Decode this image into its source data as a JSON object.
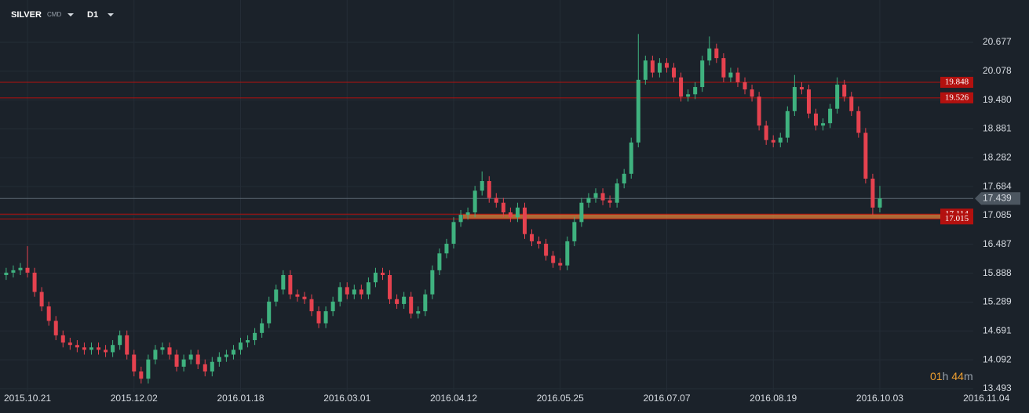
{
  "chart_data": {
    "type": "candlestick",
    "symbol": "SILVER",
    "market": "CMD",
    "timeframe": "D1",
    "open": [
      15.85,
      15.9,
      15.95,
      16.0,
      15.9,
      15.5,
      15.2,
      14.9,
      14.6,
      14.45,
      14.4,
      14.35,
      14.3,
      14.35,
      14.3,
      14.25,
      14.4,
      14.6,
      14.2,
      13.85,
      13.7,
      14.1,
      14.3,
      14.35,
      14.2,
      13.95,
      14.1,
      14.2,
      14.0,
      13.85,
      14.05,
      14.15,
      14.2,
      14.3,
      14.45,
      14.5,
      14.65,
      14.85,
      15.3,
      15.55,
      15.85,
      15.45,
      15.4,
      15.35,
      15.1,
      14.85,
      15.1,
      15.3,
      15.6,
      15.45,
      15.55,
      15.45,
      15.7,
      15.9,
      15.85,
      15.35,
      15.25,
      15.4,
      15.05,
      15.1,
      15.45,
      15.95,
      16.3,
      16.5,
      16.95,
      17.1,
      17.15,
      17.6,
      17.8,
      17.45,
      17.35,
      17.15,
      17.05,
      17.25,
      16.7,
      16.55,
      16.5,
      16.25,
      16.1,
      16.05,
      16.55,
      16.95,
      17.35,
      17.45,
      17.55,
      17.4,
      17.35,
      17.75,
      17.95,
      18.6,
      19.9,
      20.3,
      20.05,
      20.25,
      20.15,
      19.95,
      19.55,
      19.6,
      19.75,
      20.3,
      20.55,
      20.35,
      19.95,
      20.05,
      19.85,
      19.7,
      19.55,
      18.95,
      18.65,
      18.6,
      18.7,
      19.25,
      19.75,
      19.7,
      19.2,
      18.95,
      19.0,
      19.3,
      19.8,
      19.55,
      19.25,
      18.8,
      17.85,
      17.25
    ],
    "high": [
      16.0,
      16.05,
      16.1,
      16.45,
      16.0,
      15.6,
      15.3,
      15.0,
      14.7,
      14.55,
      14.5,
      14.45,
      14.45,
      14.45,
      14.4,
      14.5,
      14.7,
      14.7,
      14.3,
      13.95,
      14.2,
      14.4,
      14.45,
      14.45,
      14.3,
      14.2,
      14.3,
      14.3,
      14.1,
      14.15,
      14.25,
      14.3,
      14.4,
      14.55,
      14.6,
      14.75,
      14.95,
      15.4,
      15.65,
      15.95,
      15.95,
      15.55,
      15.5,
      15.45,
      15.2,
      15.2,
      15.4,
      15.7,
      15.7,
      15.65,
      15.65,
      15.8,
      16.0,
      16.0,
      15.95,
      15.45,
      15.5,
      15.5,
      15.2,
      15.55,
      16.05,
      16.4,
      16.6,
      17.05,
      17.2,
      17.25,
      17.7,
      18.0,
      17.9,
      17.55,
      17.45,
      17.25,
      17.35,
      17.35,
      16.8,
      16.65,
      16.6,
      16.35,
      16.2,
      16.65,
      17.05,
      17.45,
      17.55,
      17.65,
      17.65,
      17.5,
      17.85,
      18.05,
      18.7,
      20.85,
      20.4,
      20.4,
      20.35,
      20.35,
      20.25,
      20.05,
      19.7,
      19.85,
      20.4,
      20.8,
      20.65,
      20.45,
      20.15,
      20.15,
      19.95,
      19.8,
      19.65,
      19.05,
      18.75,
      18.8,
      19.35,
      20.0,
      19.85,
      19.8,
      19.3,
      19.1,
      19.4,
      19.95,
      19.9,
      19.65,
      19.35,
      18.9,
      17.95,
      17.7
    ],
    "low": [
      15.75,
      15.8,
      15.85,
      15.8,
      15.4,
      15.1,
      14.8,
      14.5,
      14.35,
      14.3,
      14.25,
      14.2,
      14.2,
      14.2,
      14.15,
      14.15,
      14.3,
      14.1,
      13.75,
      13.6,
      13.6,
      14.0,
      14.2,
      14.1,
      13.85,
      13.85,
      14.0,
      13.9,
      13.75,
      13.75,
      13.95,
      14.05,
      14.1,
      14.2,
      14.35,
      14.4,
      14.55,
      14.75,
      15.2,
      15.45,
      15.35,
      15.3,
      15.25,
      15.0,
      14.75,
      14.75,
      15.0,
      15.2,
      15.35,
      15.35,
      15.35,
      15.35,
      15.6,
      15.75,
      15.25,
      15.15,
      15.15,
      14.95,
      14.95,
      15.0,
      15.35,
      15.85,
      16.2,
      16.4,
      16.85,
      17.0,
      17.05,
      17.5,
      17.35,
      17.25,
      17.05,
      16.95,
      16.95,
      16.6,
      16.45,
      16.4,
      16.15,
      16.0,
      15.95,
      15.95,
      16.45,
      16.85,
      17.25,
      17.35,
      17.3,
      17.25,
      17.25,
      17.65,
      17.85,
      18.5,
      19.8,
      19.95,
      19.95,
      20.05,
      19.85,
      19.45,
      19.45,
      19.5,
      19.65,
      20.2,
      20.25,
      19.85,
      19.85,
      19.75,
      19.6,
      19.45,
      18.85,
      18.55,
      18.5,
      18.5,
      18.6,
      19.15,
      19.6,
      19.1,
      18.85,
      18.85,
      18.9,
      19.2,
      19.45,
      19.15,
      18.7,
      17.75,
      17.1,
      17.15
    ],
    "close": [
      15.9,
      15.95,
      16.0,
      15.9,
      15.5,
      15.2,
      14.9,
      14.6,
      14.45,
      14.4,
      14.35,
      14.3,
      14.35,
      14.3,
      14.25,
      14.4,
      14.6,
      14.2,
      13.85,
      13.7,
      14.1,
      14.3,
      14.35,
      14.2,
      13.95,
      14.1,
      14.2,
      14.0,
      13.85,
      14.05,
      14.15,
      14.2,
      14.3,
      14.45,
      14.5,
      14.65,
      14.85,
      15.3,
      15.55,
      15.85,
      15.45,
      15.4,
      15.35,
      15.1,
      14.85,
      15.1,
      15.3,
      15.6,
      15.45,
      15.55,
      15.45,
      15.7,
      15.9,
      15.85,
      15.35,
      15.25,
      15.4,
      15.05,
      15.1,
      15.45,
      15.95,
      16.3,
      16.5,
      16.95,
      17.1,
      17.15,
      17.6,
      17.8,
      17.45,
      17.35,
      17.15,
      17.05,
      17.25,
      16.7,
      16.55,
      16.5,
      16.25,
      16.1,
      16.05,
      16.55,
      16.95,
      17.35,
      17.45,
      17.55,
      17.4,
      17.35,
      17.75,
      17.95,
      18.6,
      19.9,
      20.3,
      20.05,
      20.25,
      20.15,
      19.95,
      19.55,
      19.6,
      19.75,
      20.3,
      20.55,
      20.35,
      19.95,
      20.05,
      19.85,
      19.7,
      19.55,
      18.95,
      18.65,
      18.6,
      18.7,
      19.25,
      19.75,
      19.7,
      19.2,
      18.95,
      19.0,
      19.3,
      19.8,
      19.55,
      19.25,
      18.8,
      17.85,
      17.25,
      17.44
    ],
    "up_color": "#3fb27f",
    "down_color": "#e5424f",
    "xlim": [
      -0.87,
      144
    ],
    "xticks": [
      {
        "value": 3,
        "label": "2015.10.21"
      },
      {
        "value": 18,
        "label": "2015.12.02"
      },
      {
        "value": 33,
        "label": "2016.01.18"
      },
      {
        "value": 48,
        "label": "2016.03.01"
      },
      {
        "value": 63,
        "label": "2016.04.12"
      },
      {
        "value": 78,
        "label": "2016.05.25"
      },
      {
        "value": 93,
        "label": "2016.07.07"
      },
      {
        "value": 108,
        "label": "2016.08.19"
      },
      {
        "value": 123,
        "label": "2016.10.03"
      },
      {
        "value": 138,
        "label": "2016.11.04"
      }
    ],
    "ylim": [
      13.428,
      21.555
    ],
    "yticks": [
      13.493,
      14.092,
      14.691,
      15.289,
      15.888,
      16.487,
      17.085,
      17.684,
      18.282,
      18.881,
      {
        "value": 19.48,
        "label": "19.480"
      },
      20.078,
      20.677
    ],
    "grid": true,
    "levels": [
      19.848,
      19.526,
      17.114,
      17.015
    ],
    "level_color": "#b3110f",
    "zone": [
      17.015,
      17.114
    ],
    "zone_color": "#e0823a",
    "last_price": 17.439,
    "countdown": [
      "01",
      "h",
      "44",
      "m"
    ]
  }
}
